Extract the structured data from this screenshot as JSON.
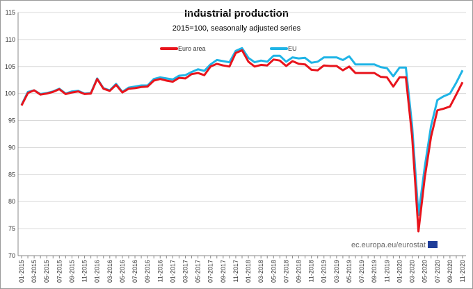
{
  "chart_data": {
    "type": "line",
    "title": "Industrial production",
    "subtitle": "2015=100, seasonally adjusted series",
    "source": "ec.europa.eu/eurostat",
    "categories": [
      "01-2015",
      null,
      "03-2015",
      null,
      "05-2015",
      null,
      "07-2015",
      null,
      "09-2015",
      null,
      "11-2015",
      null,
      "01-2016",
      null,
      "03-2016",
      null,
      "05-2016",
      null,
      "07-2016",
      null,
      "09-2016",
      null,
      "11-2016",
      null,
      "01-2017",
      null,
      "03-2017",
      null,
      "05-2017",
      null,
      "07-2017",
      null,
      "09-2017",
      null,
      "11-2017",
      null,
      "01-2018",
      null,
      "03-2018",
      null,
      "05-2018",
      null,
      "07-2018",
      null,
      "09-2018",
      null,
      "11-2018",
      null,
      "01-2019",
      null,
      "03-2019",
      null,
      "05-2019",
      null,
      "07-2019",
      null,
      "09-2019",
      null,
      "11-2019",
      null,
      "01-2020",
      null,
      "03-2020",
      null,
      "05-2020",
      null,
      "07-2020",
      null,
      "09-2020",
      null,
      "11-2020"
    ],
    "series": [
      {
        "name": "Euro area",
        "color": "#e8141c",
        "values": [
          97.8,
          100.1,
          100.6,
          99.8,
          100.0,
          100.3,
          100.8,
          99.9,
          100.2,
          100.4,
          99.9,
          100.0,
          102.7,
          100.9,
          100.5,
          101.6,
          100.2,
          100.9,
          101.0,
          101.2,
          101.3,
          102.4,
          102.7,
          102.4,
          102.2,
          102.9,
          102.8,
          103.6,
          103.8,
          103.4,
          105.0,
          105.5,
          105.2,
          105.0,
          107.5,
          108.0,
          105.9,
          105.0,
          105.3,
          105.2,
          106.3,
          106.1,
          105.1,
          106.0,
          105.5,
          105.4,
          104.4,
          104.3,
          105.2,
          105.1,
          105.1,
          104.3,
          105.0,
          103.8,
          103.8,
          103.8,
          103.8,
          103.1,
          103.0,
          101.3,
          103.0,
          103.0,
          92.0,
          74.5,
          84.5,
          92.0,
          96.9,
          97.2,
          97.6,
          99.8,
          102.1
        ]
      },
      {
        "name": "EU",
        "color": "#1fb4e6",
        "values": [
          97.9,
          100.3,
          100.6,
          99.9,
          100.1,
          100.4,
          100.9,
          100.0,
          100.4,
          100.5,
          100.0,
          100.1,
          102.8,
          101.0,
          100.6,
          101.8,
          100.3,
          101.1,
          101.3,
          101.5,
          101.5,
          102.7,
          103.0,
          102.8,
          102.6,
          103.3,
          103.4,
          104.0,
          104.5,
          104.2,
          105.4,
          106.2,
          106.0,
          105.8,
          107.9,
          108.4,
          106.6,
          105.8,
          106.1,
          105.9,
          107.0,
          107.0,
          105.9,
          106.7,
          106.5,
          106.6,
          105.7,
          105.9,
          106.7,
          106.7,
          106.7,
          106.2,
          106.9,
          105.4,
          105.4,
          105.4,
          105.4,
          104.9,
          104.7,
          103.2,
          104.8,
          104.8,
          94.0,
          77.5,
          86.5,
          94.0,
          98.8,
          99.5,
          100.0,
          102.0,
          104.3
        ]
      }
    ],
    "ylim": [
      70,
      115
    ],
    "yticks": [
      70,
      75,
      80,
      85,
      90,
      95,
      100,
      105,
      110,
      115
    ],
    "grid": true
  }
}
